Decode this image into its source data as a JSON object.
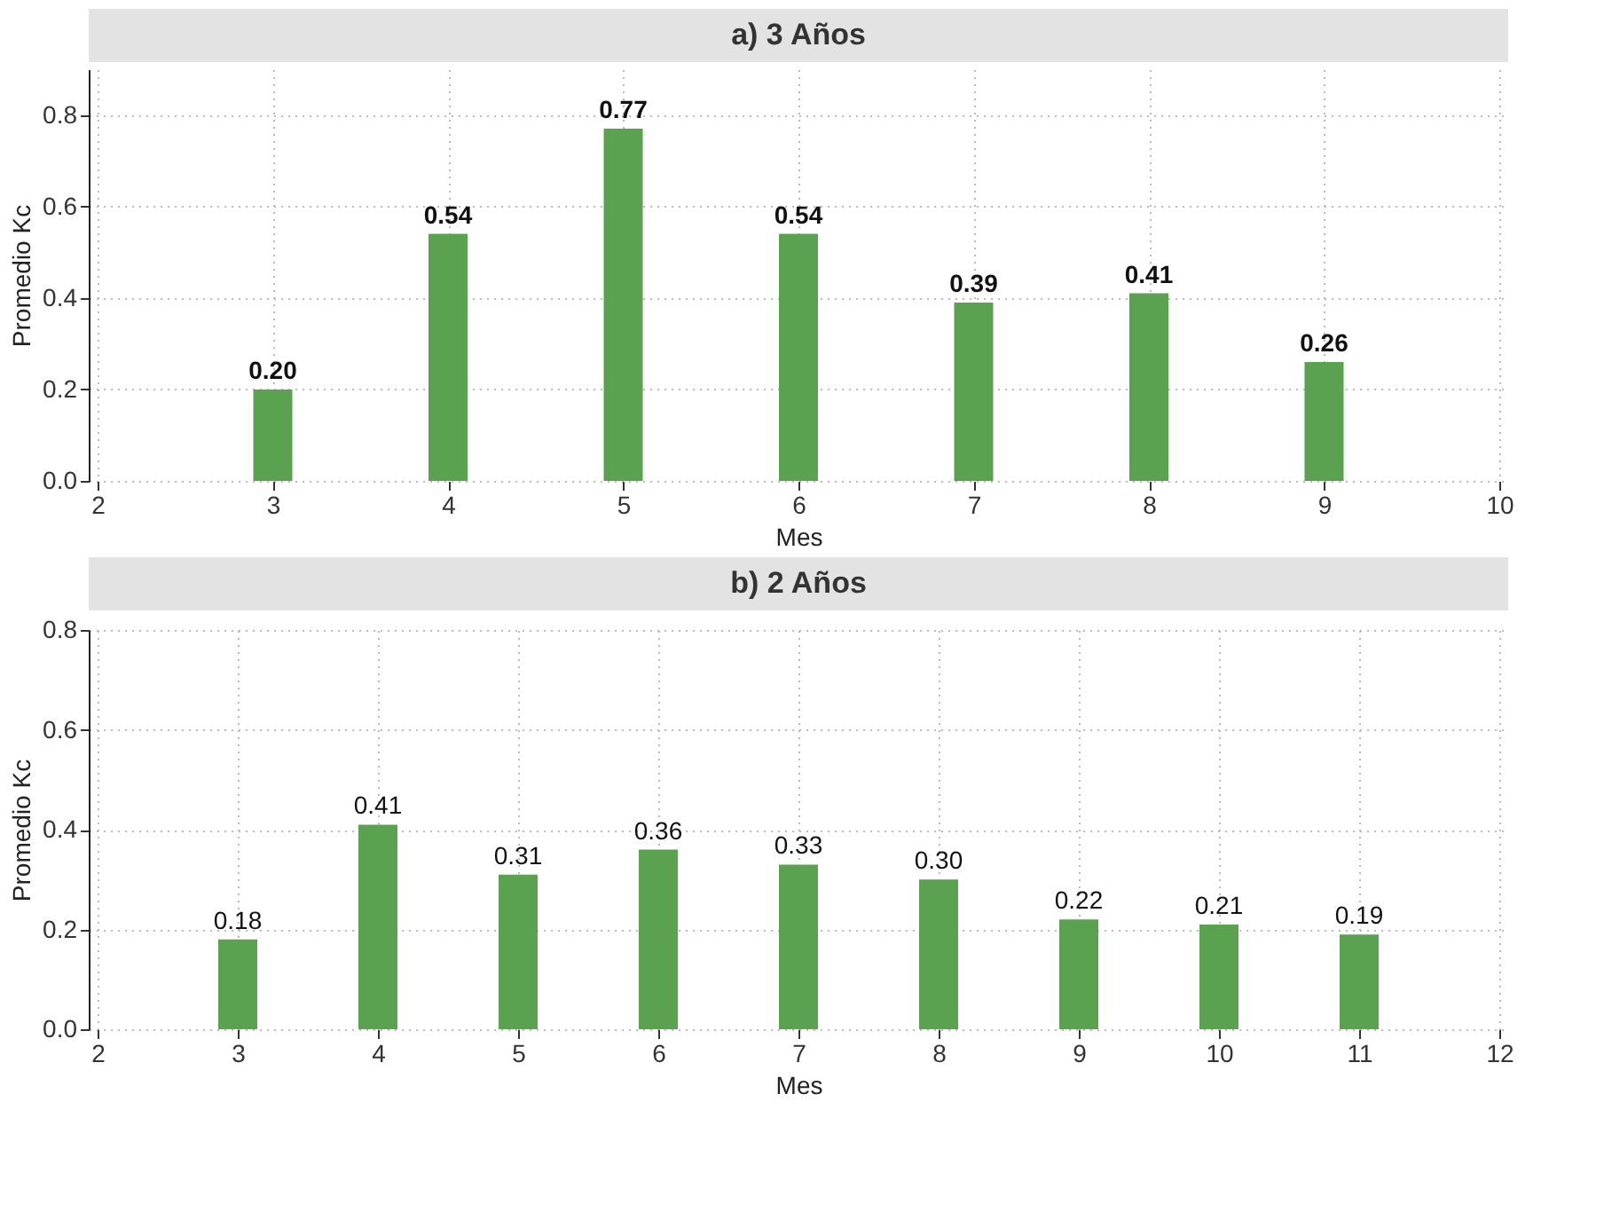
{
  "chart_data": [
    {
      "type": "bar",
      "title": "a) 3 Años",
      "xlabel": "Mes",
      "ylabel": "Promedio Kc",
      "x": [
        3,
        4,
        5,
        6,
        7,
        8,
        9
      ],
      "values": [
        0.2,
        0.54,
        0.77,
        0.54,
        0.39,
        0.41,
        0.26
      ],
      "value_labels": [
        "0.20",
        "0.54",
        "0.77",
        "0.54",
        "0.39",
        "0.41",
        "0.26"
      ],
      "color": "#5aa150",
      "xlim": [
        2,
        10
      ],
      "xticks": [
        2,
        3,
        4,
        5,
        6,
        7,
        8,
        9,
        10
      ],
      "ylim": [
        0,
        0.9
      ],
      "yticks": [
        {
          "value": 0,
          "label": "0.0"
        },
        {
          "value": 0.2,
          "label": "0.2"
        },
        {
          "value": 0.4,
          "label": "0.4"
        },
        {
          "value": 0.6,
          "label": "0.6"
        },
        {
          "value": 0.8,
          "label": "0.8"
        }
      ],
      "grid": true
    },
    {
      "type": "bar",
      "title": "b) 2 Años",
      "xlabel": "Mes",
      "ylabel": "Promedio Kc",
      "x": [
        3,
        4,
        5,
        6,
        7,
        8,
        9,
        10,
        11
      ],
      "values": [
        0.18,
        0.41,
        0.31,
        0.36,
        0.33,
        0.3,
        0.22,
        0.21,
        0.19
      ],
      "value_labels": [
        "0.18",
        "0.41",
        "0.31",
        "0.36",
        "0.33",
        "0.30",
        "0.22",
        "0.21",
        "0.19"
      ],
      "color": "#5aa150",
      "xlim": [
        2,
        12
      ],
      "xticks": [
        2,
        3,
        4,
        5,
        6,
        7,
        8,
        9,
        10,
        11,
        12
      ],
      "ylim": [
        0,
        0.8
      ],
      "yticks": [
        {
          "value": 0,
          "label": "0.0"
        },
        {
          "value": 0.2,
          "label": "0.2"
        },
        {
          "value": 0.4,
          "label": "0.4"
        },
        {
          "value": 0.6,
          "label": "0.6"
        },
        {
          "value": 0.8,
          "label": "0.8"
        }
      ],
      "grid": true
    }
  ]
}
